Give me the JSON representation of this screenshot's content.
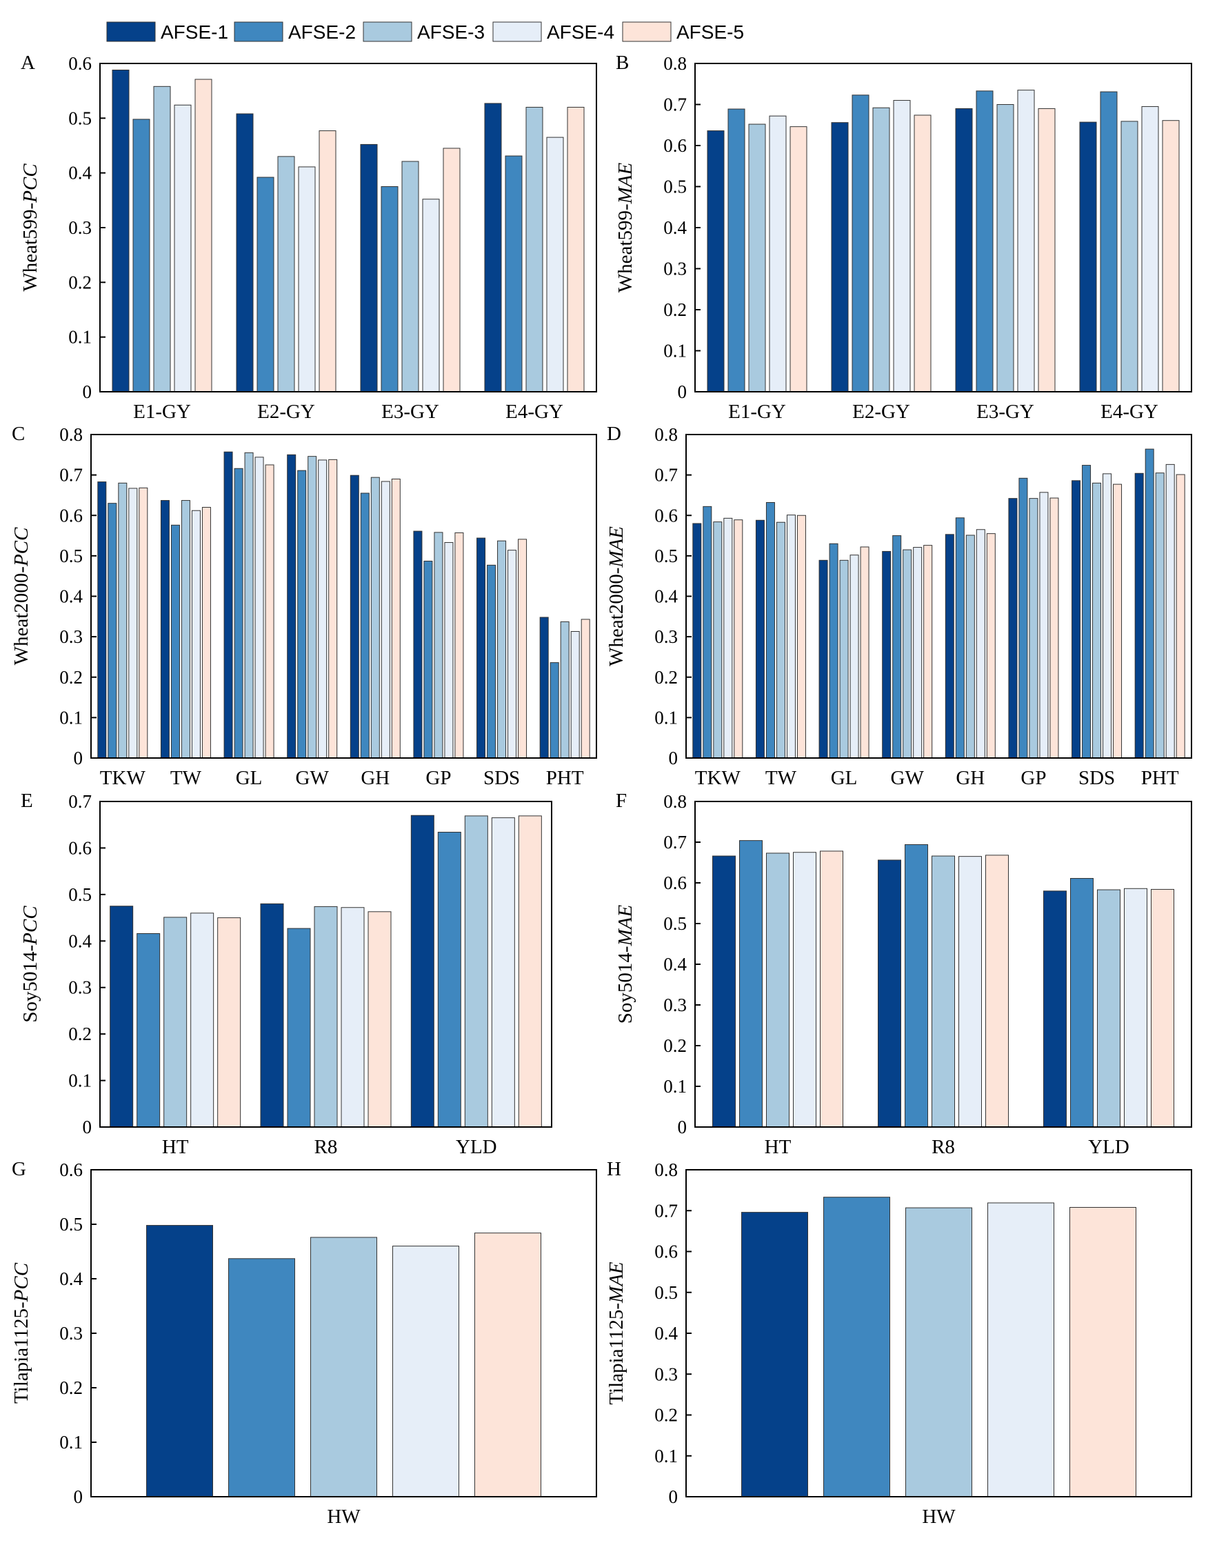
{
  "legend": {
    "items": [
      {
        "label": "AFSE-1",
        "color": "#05418a"
      },
      {
        "label": "AFSE-2",
        "color": "#3f87bf"
      },
      {
        "label": "AFSE-3",
        "color": "#a9cadf"
      },
      {
        "label": "AFSE-4",
        "color": "#e6eef8"
      },
      {
        "label": "AFSE-5",
        "color": "#fde4d9"
      }
    ]
  },
  "chart_data": [
    {
      "panel": "A",
      "type": "bar",
      "ylabel": "Wheat599-",
      "ylabel_italic": "PCC",
      "ylim": [
        0,
        0.6
      ],
      "yticks": [
        "0",
        "0.1",
        "0.2",
        "0.3",
        "0.4",
        "0.5",
        "0.6"
      ],
      "categories": [
        "E1-GY",
        "E2-GY",
        "E3-GY",
        "E4-GY"
      ],
      "series": [
        {
          "name": "AFSE-1",
          "values": [
            0.588,
            0.508,
            0.452,
            0.527
          ]
        },
        {
          "name": "AFSE-2",
          "values": [
            0.498,
            0.392,
            0.375,
            0.431
          ]
        },
        {
          "name": "AFSE-3",
          "values": [
            0.558,
            0.43,
            0.421,
            0.52
          ]
        },
        {
          "name": "AFSE-4",
          "values": [
            0.524,
            0.411,
            0.352,
            0.465
          ]
        },
        {
          "name": "AFSE-5",
          "values": [
            0.571,
            0.477,
            0.445,
            0.52
          ]
        }
      ],
      "grid": false
    },
    {
      "panel": "B",
      "type": "bar",
      "ylabel": "Wheat599-",
      "ylabel_italic": "MAE",
      "ylim": [
        0,
        0.8
      ],
      "yticks": [
        "0",
        "0.1",
        "0.2",
        "0.3",
        "0.4",
        "0.5",
        "0.6",
        "0.7",
        "0.8"
      ],
      "categories": [
        "E1-GY",
        "E2-GY",
        "E3-GY",
        "E4-GY"
      ],
      "series": [
        {
          "name": "AFSE-1",
          "values": [
            0.636,
            0.656,
            0.69,
            0.657
          ]
        },
        {
          "name": "AFSE-2",
          "values": [
            0.689,
            0.723,
            0.733,
            0.731
          ]
        },
        {
          "name": "AFSE-3",
          "values": [
            0.652,
            0.692,
            0.7,
            0.659
          ]
        },
        {
          "name": "AFSE-4",
          "values": [
            0.672,
            0.71,
            0.735,
            0.695
          ]
        },
        {
          "name": "AFSE-5",
          "values": [
            0.646,
            0.674,
            0.69,
            0.661
          ]
        }
      ],
      "grid": false
    },
    {
      "panel": "C",
      "type": "bar",
      "ylabel": "Wheat2000-",
      "ylabel_italic": "PCC",
      "ylim": [
        0,
        0.8
      ],
      "yticks": [
        "0",
        "0.1",
        "0.2",
        "0.3",
        "0.4",
        "0.5",
        "0.6",
        "0.7",
        "0.8"
      ],
      "categories": [
        "TKW",
        "TW",
        "GL",
        "GW",
        "GH",
        "GP",
        "SDS",
        "PHT"
      ],
      "series": [
        {
          "name": "AFSE-1",
          "values": [
            0.683,
            0.637,
            0.757,
            0.75,
            0.699,
            0.561,
            0.544,
            0.348
          ]
        },
        {
          "name": "AFSE-2",
          "values": [
            0.63,
            0.576,
            0.716,
            0.711,
            0.655,
            0.487,
            0.477,
            0.236
          ]
        },
        {
          "name": "AFSE-3",
          "values": [
            0.68,
            0.637,
            0.755,
            0.746,
            0.694,
            0.558,
            0.537,
            0.337
          ]
        },
        {
          "name": "AFSE-4",
          "values": [
            0.667,
            0.612,
            0.744,
            0.737,
            0.684,
            0.533,
            0.514,
            0.313
          ]
        },
        {
          "name": "AFSE-5",
          "values": [
            0.668,
            0.62,
            0.725,
            0.738,
            0.69,
            0.557,
            0.541,
            0.343
          ]
        }
      ],
      "grid": false
    },
    {
      "panel": "D",
      "type": "bar",
      "ylabel": "Wheat2000-",
      "ylabel_italic": "MAE",
      "ylim": [
        0,
        0.8
      ],
      "yticks": [
        "0",
        "0.1",
        "0.2",
        "0.3",
        "0.4",
        "0.5",
        "0.6",
        "0.7",
        "0.8"
      ],
      "categories": [
        "TKW",
        "TW",
        "GL",
        "GW",
        "GH",
        "GP",
        "SDS",
        "PHT"
      ],
      "series": [
        {
          "name": "AFSE-1",
          "values": [
            0.58,
            0.588,
            0.489,
            0.511,
            0.553,
            0.642,
            0.686,
            0.704
          ]
        },
        {
          "name": "AFSE-2",
          "values": [
            0.622,
            0.632,
            0.53,
            0.55,
            0.594,
            0.692,
            0.724,
            0.764
          ]
        },
        {
          "name": "AFSE-3",
          "values": [
            0.584,
            0.583,
            0.489,
            0.515,
            0.551,
            0.642,
            0.68,
            0.705
          ]
        },
        {
          "name": "AFSE-4",
          "values": [
            0.593,
            0.601,
            0.502,
            0.521,
            0.565,
            0.657,
            0.703,
            0.726
          ]
        },
        {
          "name": "AFSE-5",
          "values": [
            0.589,
            0.6,
            0.522,
            0.526,
            0.555,
            0.643,
            0.677,
            0.701
          ]
        }
      ],
      "grid": false
    },
    {
      "panel": "E",
      "type": "bar",
      "ylabel": "Soy5014-",
      "ylabel_italic": "PCC",
      "ylim": [
        0,
        0.7
      ],
      "yticks": [
        "0",
        "0.1",
        "0.2",
        "0.3",
        "0.4",
        "0.5",
        "0.6",
        "0.7"
      ],
      "categories": [
        "HT",
        "R8",
        "YLD"
      ],
      "series": [
        {
          "name": "AFSE-1",
          "values": [
            0.475,
            0.48,
            0.67
          ]
        },
        {
          "name": "AFSE-2",
          "values": [
            0.416,
            0.427,
            0.634
          ]
        },
        {
          "name": "AFSE-3",
          "values": [
            0.451,
            0.474,
            0.669
          ]
        },
        {
          "name": "AFSE-4",
          "values": [
            0.46,
            0.472,
            0.665
          ]
        },
        {
          "name": "AFSE-5",
          "values": [
            0.45,
            0.463,
            0.669
          ]
        }
      ],
      "grid": false
    },
    {
      "panel": "F",
      "type": "bar",
      "ylabel": "Soy5014-",
      "ylabel_italic": "MAE",
      "ylim": [
        0,
        0.8
      ],
      "yticks": [
        "0",
        "0.1",
        "0.2",
        "0.3",
        "0.4",
        "0.5",
        "0.6",
        "0.7",
        "0.8"
      ],
      "categories": [
        "HT",
        "R8",
        "YLD"
      ],
      "series": [
        {
          "name": "AFSE-1",
          "values": [
            0.666,
            0.656,
            0.58
          ]
        },
        {
          "name": "AFSE-2",
          "values": [
            0.704,
            0.694,
            0.611
          ]
        },
        {
          "name": "AFSE-3",
          "values": [
            0.673,
            0.666,
            0.583
          ]
        },
        {
          "name": "AFSE-4",
          "values": [
            0.675,
            0.665,
            0.586
          ]
        },
        {
          "name": "AFSE-5",
          "values": [
            0.678,
            0.668,
            0.584
          ]
        }
      ],
      "grid": false
    },
    {
      "panel": "G",
      "type": "bar",
      "ylabel": "Tilapia1125-",
      "ylabel_italic": "PCC",
      "ylim": [
        0,
        0.6
      ],
      "yticks": [
        "0",
        "0.1",
        "0.2",
        "0.3",
        "0.4",
        "0.5",
        "0.6"
      ],
      "categories": [
        "HW"
      ],
      "series": [
        {
          "name": "AFSE-1",
          "values": [
            0.498
          ]
        },
        {
          "name": "AFSE-2",
          "values": [
            0.437
          ]
        },
        {
          "name": "AFSE-3",
          "values": [
            0.476
          ]
        },
        {
          "name": "AFSE-4",
          "values": [
            0.46
          ]
        },
        {
          "name": "AFSE-5",
          "values": [
            0.484
          ]
        }
      ],
      "grid": false
    },
    {
      "panel": "H",
      "type": "bar",
      "ylabel": "Tilapia1125-",
      "ylabel_italic": "MAE",
      "ylim": [
        0,
        0.8
      ],
      "yticks": [
        "0",
        "0.1",
        "0.2",
        "0.3",
        "0.4",
        "0.5",
        "0.6",
        "0.7",
        "0.8"
      ],
      "categories": [
        "HW"
      ],
      "series": [
        {
          "name": "AFSE-1",
          "values": [
            0.696
          ]
        },
        {
          "name": "AFSE-2",
          "values": [
            0.733
          ]
        },
        {
          "name": "AFSE-3",
          "values": [
            0.707
          ]
        },
        {
          "name": "AFSE-4",
          "values": [
            0.719
          ]
        },
        {
          "name": "AFSE-5",
          "values": [
            0.708
          ]
        }
      ],
      "grid": false
    }
  ]
}
